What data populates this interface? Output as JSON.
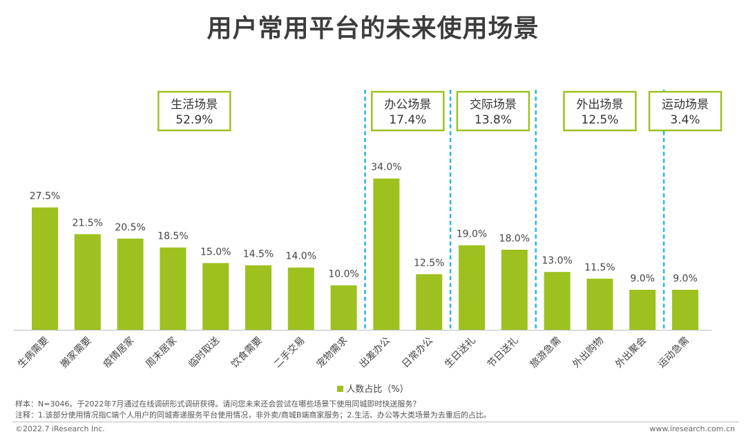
{
  "page_title": "用户常用平台的未来使用场景",
  "chart_data": {
    "type": "bar",
    "title": "用户常用平台的未来使用场景",
    "categories": [
      "生病需要",
      "搬家需要",
      "疫情居家",
      "周末居家",
      "临时取送",
      "饮食需要",
      "二手交易",
      "宠物需求",
      "出差办公",
      "日常办公",
      "生日送礼",
      "节日送礼",
      "旅游急需",
      "外出购物",
      "外出聚会",
      "运动急需"
    ],
    "values": [
      27.5,
      21.5,
      20.5,
      18.5,
      15.0,
      14.5,
      14.0,
      10.0,
      34.0,
      12.5,
      19.0,
      18.0,
      13.0,
      11.5,
      9.0,
      9.0
    ],
    "value_labels": [
      "27.5%",
      "21.5%",
      "20.5%",
      "18.5%",
      "15.0%",
      "14.5%",
      "14.0%",
      "10.0%",
      "34.0%",
      "12.5%",
      "19.0%",
      "18.0%",
      "13.0%",
      "11.5%",
      "9.0%",
      "9.0%"
    ],
    "ylim": [
      0,
      40
    ],
    "xlabel": "",
    "ylabel": "",
    "series_name": "人数占比（%）",
    "bar_color": "#9dc11f",
    "group_box_color": "#9dc11f",
    "divider_color": "#29b6e8",
    "groups": [
      {
        "name": "生活场景",
        "share": "52.9%",
        "start": 0,
        "end": 7
      },
      {
        "name": "办公场景",
        "share": "17.4%",
        "start": 8,
        "end": 9
      },
      {
        "name": "交际场景",
        "share": "13.8%",
        "start": 10,
        "end": 11
      },
      {
        "name": "外出场景",
        "share": "12.5%",
        "start": 12,
        "end": 14
      },
      {
        "name": "运动场景",
        "share": "3.4%",
        "start": 15,
        "end": 15
      }
    ]
  },
  "legend": {
    "label": "人数占比（%）"
  },
  "notes": {
    "sample": "样本：N=3046。于2022年7月通过在线调研形式调研获得。请问您未来还会尝试在哪些场景下使用同城即时快送服务？",
    "remark": "注释：1.该部分使用情况指C端个人用户的同城寄递服务平台使用情况，非外卖/商城B端商家服务；2.生活、办公等大类场景为去重后的占比。"
  },
  "footer": {
    "copyright": "©2022.7 iResearch Inc.",
    "website": "www.iresearch.com.cn"
  }
}
